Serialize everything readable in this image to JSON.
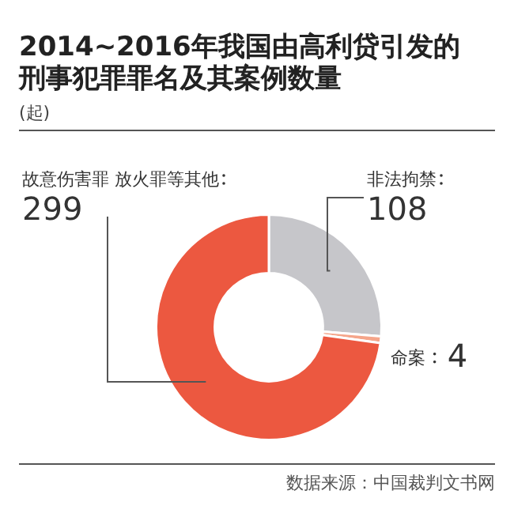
{
  "chart_data": {
    "type": "donut",
    "title": "2014~2016年我国由高利贷引发的刑事犯罪罪名及其案例数量",
    "subtitle": "(起)",
    "categories": [
      "非法拘禁",
      "命案",
      "故意伤害罪 放火罪等其他"
    ],
    "values": [
      108,
      4,
      299
    ],
    "colors": [
      "#c6c6ca",
      "#f5a58a",
      "#ec5840"
    ],
    "data_labels": true,
    "legend": false,
    "annotations": [
      "数据来源：中国裁判文书网"
    ]
  }
}
